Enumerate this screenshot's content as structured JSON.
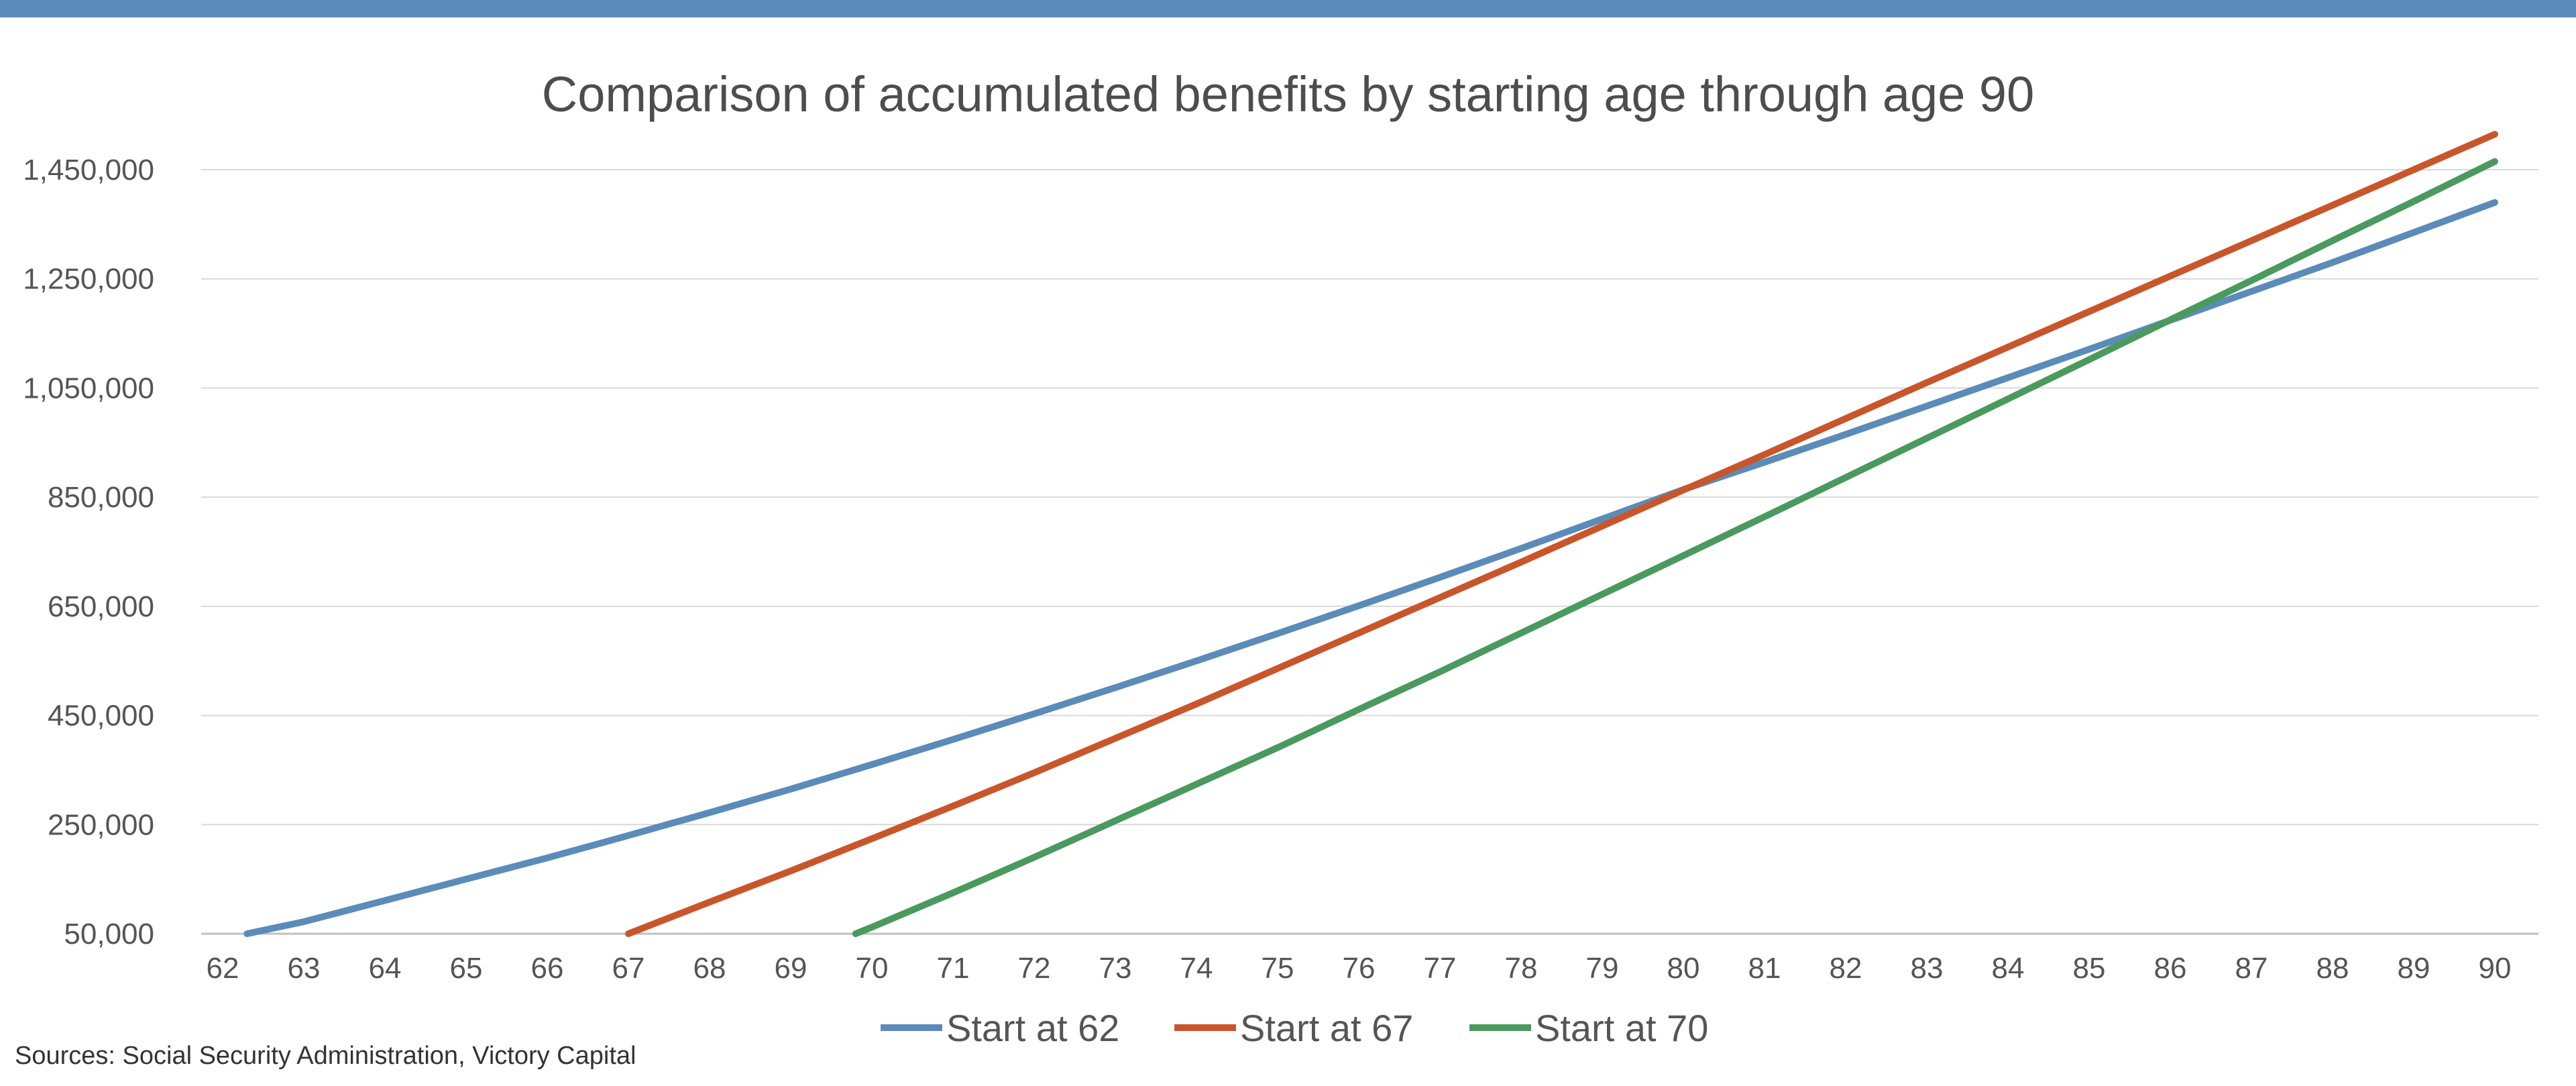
{
  "colors": {
    "top_bar": "#5b8bb9",
    "gridline": "#d9d9d9",
    "axis": "#bfbfbf"
  },
  "chart_data": {
    "type": "line",
    "title": "Comparison of accumulated benefits by starting age through age 90",
    "xlabel": "",
    "ylabel": "",
    "x": [
      62,
      63,
      64,
      65,
      66,
      67,
      68,
      69,
      70,
      71,
      72,
      73,
      74,
      75,
      76,
      77,
      78,
      79,
      80,
      81,
      82,
      83,
      84,
      85,
      86,
      87,
      88,
      89,
      90
    ],
    "xlim": [
      62,
      90
    ],
    "ylim": [
      50000,
      1450000
    ],
    "y_ticks": [
      50000,
      250000,
      450000,
      650000,
      850000,
      1050000,
      1250000,
      1450000
    ],
    "y_tick_labels": [
      "50,000",
      "250,000",
      "450,000",
      "650,000",
      "850,000",
      "1,050,000",
      "1,250,000",
      "1,450,000"
    ],
    "grid": true,
    "legend_position": "bottom",
    "series": [
      {
        "name": "Start at 62",
        "color": "#5b8bb9",
        "x": [
          62.3,
          63,
          64,
          65,
          66,
          67,
          68,
          69,
          70,
          71,
          72,
          73,
          74,
          75,
          76,
          77,
          78,
          79,
          80,
          81,
          82,
          83,
          84,
          85,
          86,
          87,
          88,
          89,
          90
        ],
        "values": [
          50000,
          72000,
          111000,
          150000,
          189000,
          230000,
          272000,
          315000,
          360000,
          406000,
          453000,
          501000,
          550000,
          600000,
          651000,
          703000,
          756000,
          810000,
          864000,
          914000,
          965000,
          1017000,
          1069000,
          1121000,
          1174000,
          1227000,
          1280000,
          1335000,
          1390000
        ]
      },
      {
        "name": "Start at 67",
        "color": "#c9562b",
        "x": [
          67,
          68,
          69,
          70,
          71,
          72,
          73,
          74,
          75,
          76,
          77,
          78,
          79,
          80,
          81,
          82,
          83,
          84,
          85,
          86,
          87,
          88,
          89,
          90
        ],
        "values": [
          50000,
          108000,
          165000,
          224000,
          284000,
          345000,
          408000,
          471000,
          536000,
          601000,
          666000,
          731000,
          797000,
          863000,
          928000,
          994000,
          1060000,
          1125000,
          1190000,
          1255000,
          1320000,
          1385000,
          1450000,
          1515000
        ]
      },
      {
        "name": "Start at 70",
        "color": "#4a9a5e",
        "x": [
          69.8,
          70,
          71,
          72,
          73,
          74,
          75,
          76,
          77,
          78,
          79,
          80,
          81,
          82,
          83,
          84,
          85,
          86,
          87,
          88,
          89,
          90
        ],
        "values": [
          50000,
          62000,
          125000,
          190000,
          257000,
          324000,
          391000,
          461000,
          530000,
          601000,
          672000,
          743000,
          814000,
          886000,
          958000,
          1030000,
          1102000,
          1175000,
          1247000,
          1320000,
          1392000,
          1465000
        ]
      }
    ]
  },
  "source": "Sources: Social Security Administration, Victory Capital"
}
